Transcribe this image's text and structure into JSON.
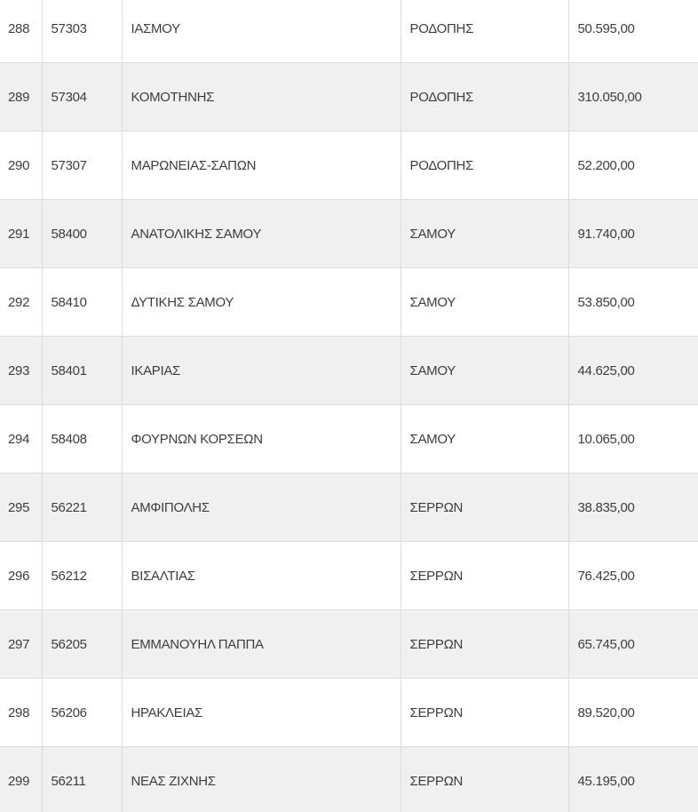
{
  "table": {
    "rows": [
      {
        "num": "288",
        "code": "57303",
        "name": "ΙΑΣΜΟΥ",
        "prefecture": "ΡΟΔΟΠΗΣ",
        "amount": "50.595,00"
      },
      {
        "num": "289",
        "code": "57304",
        "name": "ΚΟΜΟΤΗΝΗΣ",
        "prefecture": "ΡΟΔΟΠΗΣ",
        "amount": "310.050,00"
      },
      {
        "num": "290",
        "code": "57307",
        "name": "ΜΑΡΩΝΕΙΑΣ-ΣΑΠΩΝ",
        "prefecture": "ΡΟΔΟΠΗΣ",
        "amount": "52.200,00"
      },
      {
        "num": "291",
        "code": "58400",
        "name": "ΑΝΑΤΟΛΙΚΗΣ ΣΑΜΟΥ",
        "prefecture": "ΣΑΜΟΥ",
        "amount": "91.740,00"
      },
      {
        "num": "292",
        "code": "58410",
        "name": "ΔΥΤΙΚΗΣ ΣΑΜΟΥ",
        "prefecture": "ΣΑΜΟΥ",
        "amount": "53.850,00"
      },
      {
        "num": "293",
        "code": "58401",
        "name": "ΙΚΑΡΙΑΣ",
        "prefecture": "ΣΑΜΟΥ",
        "amount": "44.625,00"
      },
      {
        "num": "294",
        "code": "58408",
        "name": "ΦΟΥΡΝΩΝ ΚΟΡΣΕΩΝ",
        "prefecture": "ΣΑΜΟΥ",
        "amount": "10.065,00"
      },
      {
        "num": "295",
        "code": "56221",
        "name": "ΑΜΦΙΠΟΛΗΣ",
        "prefecture": "ΣΕΡΡΩΝ",
        "amount": "38.835,00"
      },
      {
        "num": "296",
        "code": "56212",
        "name": "ΒΙΣΑΛΤΙΑΣ",
        "prefecture": "ΣΕΡΡΩΝ",
        "amount": "76.425,00"
      },
      {
        "num": "297",
        "code": "56205",
        "name": "ΕΜΜΑΝΟΥΗΛ ΠΑΠΠΑ",
        "prefecture": "ΣΕΡΡΩΝ",
        "amount": "65.745,00"
      },
      {
        "num": "298",
        "code": "56206",
        "name": "ΗΡΑΚΛΕΙΑΣ",
        "prefecture": "ΣΕΡΡΩΝ",
        "amount": "89.520,00"
      },
      {
        "num": "299",
        "code": "56211",
        "name": "ΝΕΑΣ ΖΙΧΝΗΣ",
        "prefecture": "ΣΕΡΡΩΝ",
        "amount": "45.195,00"
      }
    ]
  },
  "colors": {
    "row_background": "#ffffff",
    "stripe": "#f0f0f0",
    "border": "#dddddd",
    "text": "#3d3d3d"
  }
}
